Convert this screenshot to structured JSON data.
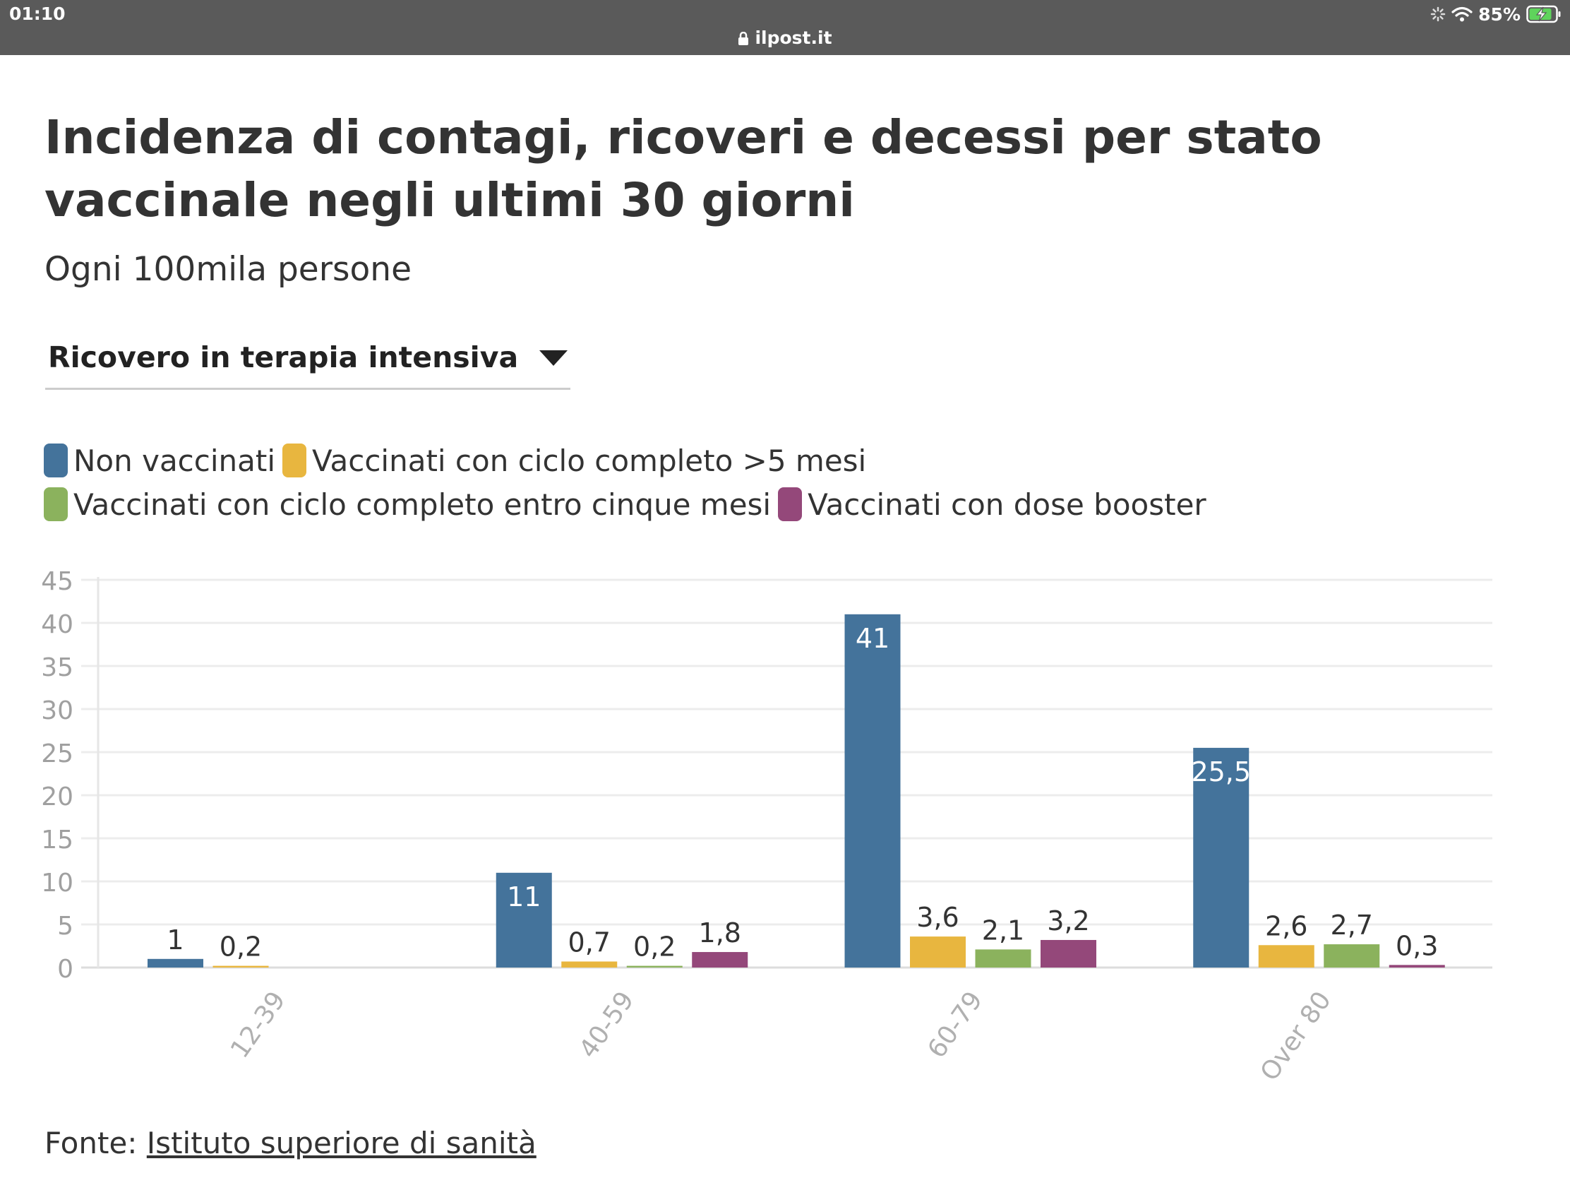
{
  "status_bar": {
    "time": "01:10",
    "url": "ilpost.it",
    "battery": "85%",
    "icons": [
      "lock-icon",
      "loading-icon",
      "wifi-icon",
      "battery-charging-icon"
    ]
  },
  "header": {
    "title": "Incidenza di contagi, ricoveri e decessi per stato vaccinale negli ultimi 30 giorni",
    "subtitle": "Ogni 100mila persone"
  },
  "selector": {
    "selected": "Ricovero in terapia intensiva",
    "icon": "caret-down-icon"
  },
  "footer": {
    "source_prefix": "Fonte:",
    "source_link": "Istituto superiore di sanità"
  },
  "chart_data": {
    "type": "bar",
    "categories": [
      "12-39",
      "40-59",
      "60-79",
      "Over 80"
    ],
    "series": [
      {
        "name": "Non vaccinati",
        "color": "#44739b",
        "values": [
          1,
          11,
          41,
          25.5
        ],
        "labels": [
          "1",
          "11",
          "41",
          "25,5"
        ]
      },
      {
        "name": "Vaccinati con ciclo completo >5 mesi",
        "color": "#e8b63f",
        "values": [
          0.2,
          0.7,
          3.6,
          2.6
        ],
        "labels": [
          "0,2",
          "0,7",
          "3,6",
          "2,6"
        ]
      },
      {
        "name": "Vaccinati con ciclo completo entro cinque mesi",
        "color": "#8bb25d",
        "values": [
          0,
          0.2,
          2.1,
          2.7
        ],
        "labels": [
          "",
          "0,2",
          "2,1",
          "2,7"
        ]
      },
      {
        "name": "Vaccinati con dose booster",
        "color": "#94487a",
        "values": [
          0,
          1.8,
          3.2,
          0.3
        ],
        "labels": [
          "",
          "1,8",
          "3,2",
          "0,3"
        ]
      }
    ],
    "ylim": [
      0,
      45
    ],
    "yticks": [
      0,
      5,
      10,
      15,
      20,
      25,
      30,
      35,
      40,
      45
    ],
    "grid": true,
    "legend_position": "top"
  }
}
